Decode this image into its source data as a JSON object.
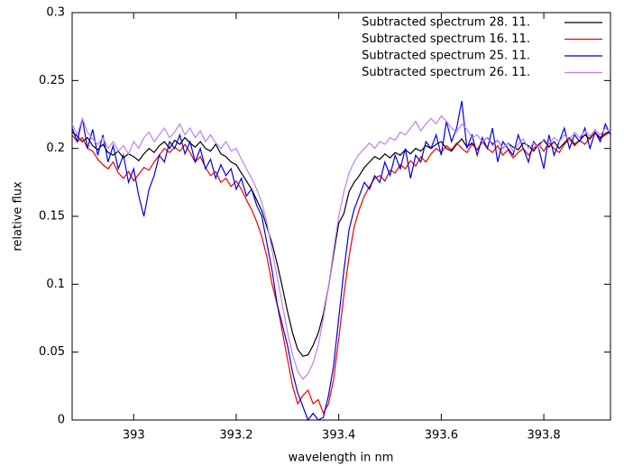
{
  "chart_data": {
    "type": "line",
    "xlabel": "wavelength in nm",
    "ylabel": "relative flux",
    "xlim": [
      392.88,
      393.93
    ],
    "ylim": [
      0,
      0.3
    ],
    "xticks": [
      393,
      393.2,
      393.4,
      393.6,
      393.8
    ],
    "yticks": [
      0,
      0.05,
      0.1,
      0.15,
      0.2,
      0.25,
      0.3
    ],
    "grid": false,
    "legend": "top-right",
    "x": [
      392.88,
      392.89,
      392.9,
      392.91,
      392.92,
      392.93,
      392.94,
      392.95,
      392.96,
      392.97,
      392.98,
      392.99,
      393,
      393.01,
      393.02,
      393.03,
      393.04,
      393.05,
      393.06,
      393.07,
      393.08,
      393.09,
      393.1,
      393.11,
      393.12,
      393.13,
      393.14,
      393.15,
      393.16,
      393.17,
      393.18,
      393.19,
      393.2,
      393.21,
      393.22,
      393.23,
      393.24,
      393.25,
      393.26,
      393.27,
      393.28,
      393.29,
      393.3,
      393.31,
      393.32,
      393.33,
      393.34,
      393.35,
      393.36,
      393.37,
      393.38,
      393.39,
      393.4,
      393.41,
      393.42,
      393.43,
      393.44,
      393.45,
      393.46,
      393.47,
      393.48,
      393.49,
      393.5,
      393.51,
      393.52,
      393.53,
      393.54,
      393.55,
      393.56,
      393.57,
      393.58,
      393.59,
      393.6,
      393.61,
      393.62,
      393.63,
      393.64,
      393.65,
      393.66,
      393.67,
      393.68,
      393.69,
      393.7,
      393.71,
      393.72,
      393.73,
      393.74,
      393.75,
      393.76,
      393.77,
      393.78,
      393.79,
      393.8,
      393.81,
      393.82,
      393.83,
      393.84,
      393.85,
      393.86,
      393.87,
      393.88,
      393.89,
      393.9,
      393.91,
      393.92,
      393.93
    ],
    "series": [
      {
        "name": "Subtracted spectrum 28. 11.",
        "color": "#000000",
        "values": [
          0.212,
          0.209,
          0.205,
          0.208,
          0.202,
          0.199,
          0.203,
          0.197,
          0.195,
          0.198,
          0.193,
          0.196,
          0.194,
          0.191,
          0.196,
          0.2,
          0.197,
          0.202,
          0.205,
          0.2,
          0.206,
          0.203,
          0.208,
          0.204,
          0.201,
          0.205,
          0.2,
          0.198,
          0.203,
          0.196,
          0.194,
          0.19,
          0.188,
          0.182,
          0.176,
          0.17,
          0.162,
          0.154,
          0.142,
          0.13,
          0.115,
          0.098,
          0.08,
          0.064,
          0.052,
          0.047,
          0.048,
          0.055,
          0.064,
          0.078,
          0.098,
          0.122,
          0.145,
          0.152,
          0.168,
          0.175,
          0.18,
          0.186,
          0.19,
          0.194,
          0.192,
          0.196,
          0.193,
          0.197,
          0.195,
          0.199,
          0.196,
          0.2,
          0.198,
          0.202,
          0.2,
          0.203,
          0.205,
          0.2,
          0.198,
          0.203,
          0.207,
          0.201,
          0.204,
          0.199,
          0.205,
          0.208,
          0.203,
          0.206,
          0.2,
          0.204,
          0.201,
          0.199,
          0.204,
          0.202,
          0.198,
          0.203,
          0.206,
          0.201,
          0.205,
          0.2,
          0.204,
          0.208,
          0.203,
          0.206,
          0.21,
          0.207,
          0.212,
          0.208,
          0.211,
          0.213
        ]
      },
      {
        "name": "Subtracted spectrum 16. 11.",
        "color": "#ee0000",
        "values": [
          0.21,
          0.205,
          0.208,
          0.2,
          0.198,
          0.192,
          0.188,
          0.185,
          0.19,
          0.182,
          0.178,
          0.183,
          0.176,
          0.181,
          0.186,
          0.184,
          0.19,
          0.195,
          0.2,
          0.197,
          0.201,
          0.198,
          0.203,
          0.197,
          0.19,
          0.194,
          0.186,
          0.18,
          0.183,
          0.175,
          0.178,
          0.172,
          0.176,
          0.17,
          0.162,
          0.155,
          0.146,
          0.135,
          0.12,
          0.1,
          0.085,
          0.065,
          0.045,
          0.025,
          0.012,
          0.018,
          0.022,
          0.012,
          0.015,
          0.005,
          0.012,
          0.03,
          0.06,
          0.092,
          0.12,
          0.142,
          0.155,
          0.165,
          0.172,
          0.178,
          0.18,
          0.176,
          0.184,
          0.182,
          0.188,
          0.185,
          0.191,
          0.187,
          0.194,
          0.19,
          0.196,
          0.2,
          0.197,
          0.202,
          0.199,
          0.204,
          0.2,
          0.197,
          0.203,
          0.199,
          0.205,
          0.2,
          0.197,
          0.202,
          0.195,
          0.199,
          0.193,
          0.197,
          0.2,
          0.195,
          0.2,
          0.203,
          0.198,
          0.204,
          0.2,
          0.197,
          0.203,
          0.207,
          0.202,
          0.206,
          0.203,
          0.208,
          0.212,
          0.207,
          0.21,
          0.212
        ]
      },
      {
        "name": "Subtracted spectrum 25. 11.",
        "color": "#0000dd",
        "values": [
          0.215,
          0.205,
          0.222,
          0.2,
          0.214,
          0.195,
          0.21,
          0.19,
          0.202,
          0.185,
          0.195,
          0.175,
          0.185,
          0.165,
          0.15,
          0.17,
          0.18,
          0.195,
          0.19,
          0.205,
          0.2,
          0.21,
          0.196,
          0.205,
          0.19,
          0.2,
          0.185,
          0.192,
          0.178,
          0.188,
          0.18,
          0.185,
          0.17,
          0.178,
          0.165,
          0.17,
          0.158,
          0.15,
          0.13,
          0.11,
          0.085,
          0.07,
          0.055,
          0.035,
          0.02,
          0.01,
          0.0,
          0.005,
          0.0,
          0.002,
          0.018,
          0.04,
          0.075,
          0.11,
          0.14,
          0.155,
          0.165,
          0.175,
          0.17,
          0.18,
          0.175,
          0.19,
          0.18,
          0.195,
          0.185,
          0.2,
          0.178,
          0.195,
          0.19,
          0.205,
          0.2,
          0.21,
          0.195,
          0.22,
          0.205,
          0.215,
          0.235,
          0.2,
          0.21,
          0.195,
          0.208,
          0.2,
          0.215,
          0.19,
          0.205,
          0.2,
          0.195,
          0.21,
          0.2,
          0.19,
          0.205,
          0.2,
          0.185,
          0.21,
          0.195,
          0.205,
          0.215,
          0.2,
          0.21,
          0.205,
          0.215,
          0.2,
          0.212,
          0.205,
          0.218,
          0.21
        ]
      },
      {
        "name": "Subtracted spectrum 26. 11.",
        "color": "#c080f0",
        "values": [
          0.218,
          0.21,
          0.222,
          0.212,
          0.207,
          0.203,
          0.208,
          0.2,
          0.205,
          0.198,
          0.202,
          0.196,
          0.205,
          0.2,
          0.208,
          0.212,
          0.205,
          0.21,
          0.215,
          0.208,
          0.212,
          0.218,
          0.21,
          0.215,
          0.208,
          0.213,
          0.205,
          0.21,
          0.204,
          0.2,
          0.205,
          0.198,
          0.2,
          0.192,
          0.185,
          0.178,
          0.17,
          0.16,
          0.145,
          0.125,
          0.105,
          0.085,
          0.065,
          0.048,
          0.036,
          0.03,
          0.034,
          0.042,
          0.055,
          0.075,
          0.098,
          0.125,
          0.15,
          0.168,
          0.182,
          0.19,
          0.196,
          0.2,
          0.204,
          0.2,
          0.205,
          0.203,
          0.208,
          0.206,
          0.212,
          0.21,
          0.215,
          0.22,
          0.213,
          0.218,
          0.222,
          0.218,
          0.224,
          0.22,
          0.215,
          0.212,
          0.218,
          0.214,
          0.208,
          0.21,
          0.205,
          0.208,
          0.202,
          0.206,
          0.2,
          0.204,
          0.198,
          0.203,
          0.207,
          0.2,
          0.204,
          0.2,
          0.207,
          0.203,
          0.208,
          0.205,
          0.21,
          0.206,
          0.212,
          0.208,
          0.213,
          0.209,
          0.214,
          0.21,
          0.215,
          0.212
        ]
      }
    ]
  }
}
